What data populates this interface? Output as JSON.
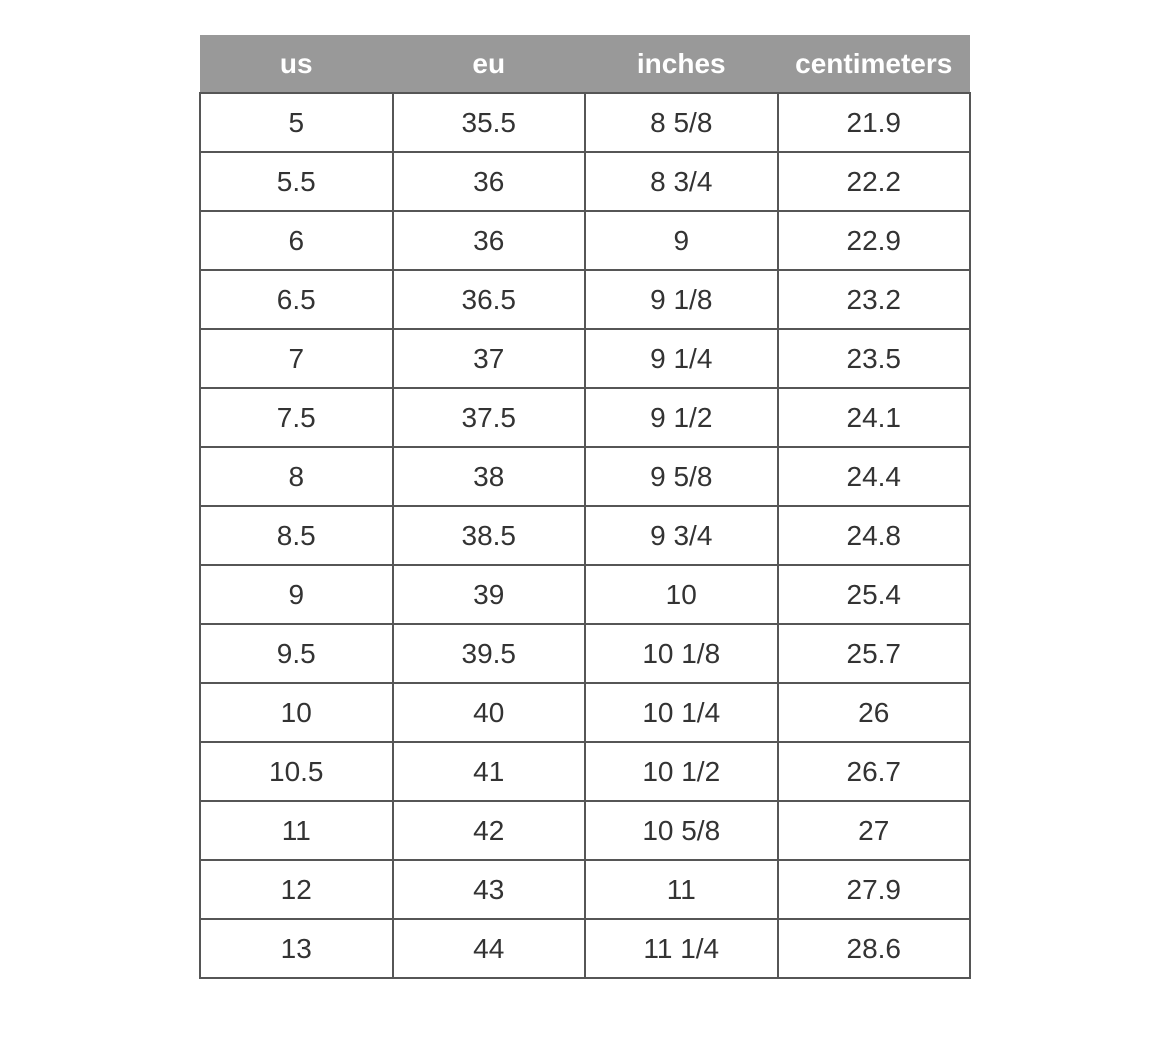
{
  "colors": {
    "header_bg": "#999999",
    "header_text": "#ffffff",
    "body_text": "#333333",
    "border": "#565656",
    "cell_bg": "#ffffff",
    "page_bg": "#ffffff"
  },
  "chart_data": {
    "type": "table",
    "title": "",
    "columns": [
      "us",
      "eu",
      "inches",
      "centimeters"
    ],
    "rows": [
      [
        "5",
        "35.5",
        "8 5/8",
        "21.9"
      ],
      [
        "5.5",
        "36",
        "8 3/4",
        "22.2"
      ],
      [
        "6",
        "36",
        "9",
        "22.9"
      ],
      [
        "6.5",
        "36.5",
        "9 1/8",
        "23.2"
      ],
      [
        "7",
        "37",
        "9 1/4",
        "23.5"
      ],
      [
        "7.5",
        "37.5",
        "9 1/2",
        "24.1"
      ],
      [
        "8",
        "38",
        "9 5/8",
        "24.4"
      ],
      [
        "8.5",
        "38.5",
        "9 3/4",
        "24.8"
      ],
      [
        "9",
        "39",
        "10",
        "25.4"
      ],
      [
        "9.5",
        "39.5",
        "10 1/8",
        "25.7"
      ],
      [
        "10",
        "40",
        "10 1/4",
        "26"
      ],
      [
        "10.5",
        "41",
        "10 1/2",
        "26.7"
      ],
      [
        "11",
        "42",
        "10 5/8",
        "27"
      ],
      [
        "12",
        "43",
        "11",
        "27.9"
      ],
      [
        "13",
        "44",
        "11 1/4",
        "28.6"
      ]
    ]
  }
}
